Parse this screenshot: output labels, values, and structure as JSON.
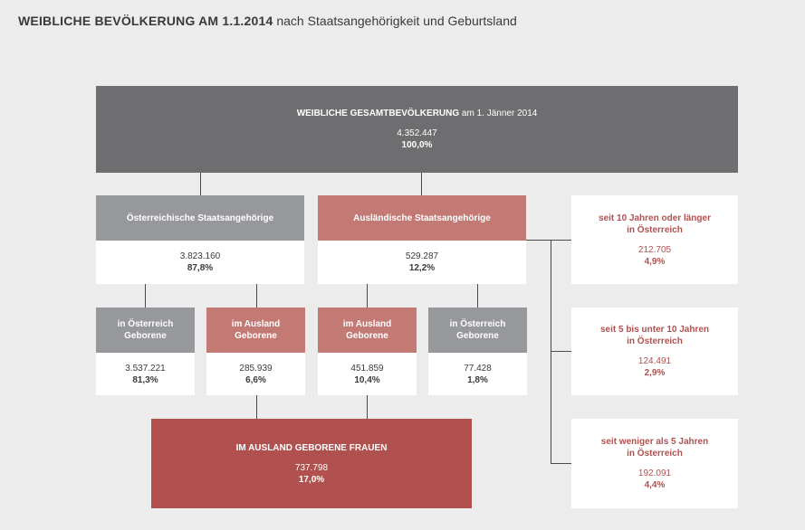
{
  "title": {
    "bold": "WEIBLICHE BEVÖLKERUNG AM 1.1.2014",
    "normal": "nach Staatsangehörigkeit und Geburtsland"
  },
  "total": {
    "label_bold": "WEIBLICHE GESAMTBEVÖLKERUNG",
    "label_normal": "am 1. Jänner 2014",
    "value": "4.352.447",
    "percent": "100,0%"
  },
  "austrian": {
    "label": "Österreichische Staatsangehörige",
    "value": "3.823.160",
    "percent": "87,8%"
  },
  "foreign": {
    "label": "Ausländische Staatsangehörige",
    "value": "529.287",
    "percent": "12,2%"
  },
  "aut_born_austria": {
    "label_line1": "in Österreich",
    "label_line2": "Geborene",
    "value": "3.537.221",
    "percent": "81,3%"
  },
  "aut_born_abroad": {
    "label_line1": "im Ausland",
    "label_line2": "Geborene",
    "value": "285.939",
    "percent": "6,6%"
  },
  "for_born_abroad": {
    "label_line1": "im Ausland",
    "label_line2": "Geborene",
    "value": "451.859",
    "percent": "10,4%"
  },
  "for_born_austria": {
    "label_line1": "in Österreich",
    "label_line2": "Geborene",
    "value": "77.428",
    "percent": "1,8%"
  },
  "abroad_women": {
    "label": "IM AUSLAND GEBORENE FRAUEN",
    "value": "737.798",
    "percent": "17,0%"
  },
  "residence": [
    {
      "line1": "seit 10 Jahren oder länger",
      "line2": "in Österreich",
      "value": "212.705",
      "percent": "4,9%"
    },
    {
      "line1": "seit 5 bis unter 10 Jahren",
      "line2": "in Österreich",
      "value": "124.491",
      "percent": "2,9%"
    },
    {
      "line1": "seit weniger als 5 Jahren",
      "line2": "in Österreich",
      "value": "192.091",
      "percent": "4,4%"
    }
  ],
  "colors": {
    "background": "#ececec",
    "dark_grey": "#6e6e70",
    "grey": "#97989b",
    "rose": "#c47a74",
    "red": "#b0514f",
    "white": "#ffffff"
  }
}
